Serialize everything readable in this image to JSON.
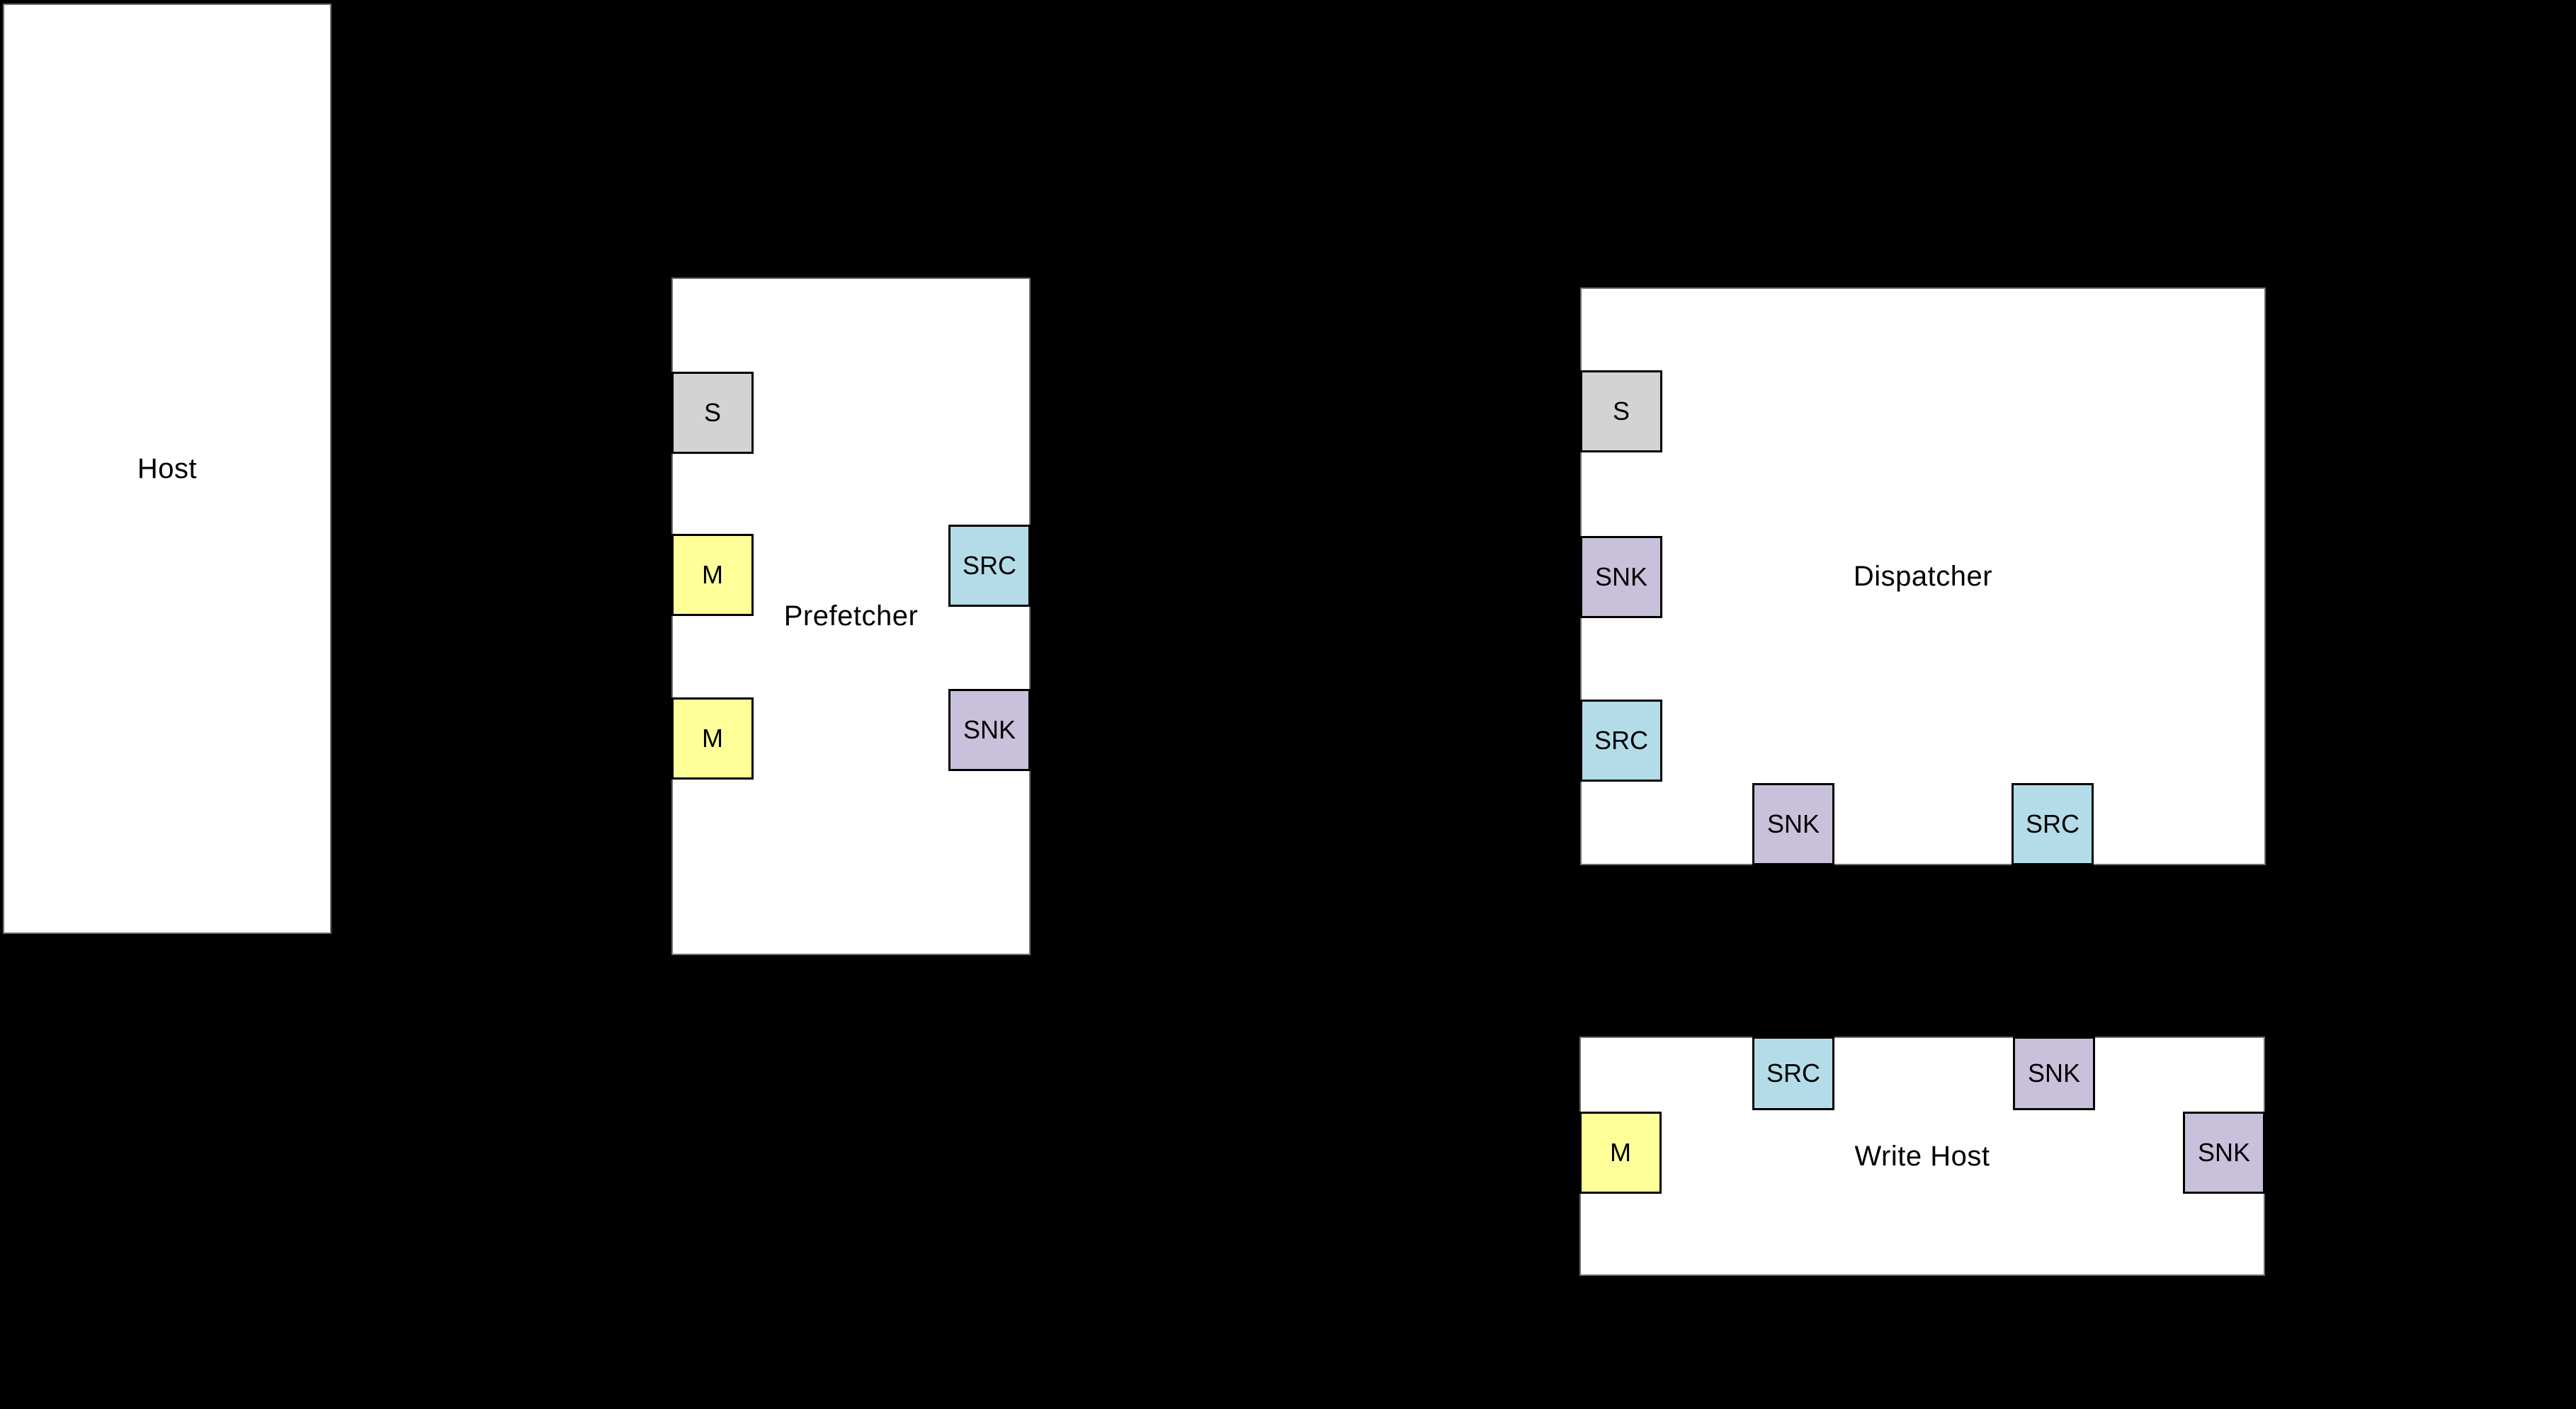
{
  "diagram": {
    "background": "#000000",
    "box_fill": "#ffffff",
    "port_colors": {
      "S": "#D3D3D3",
      "M": "#FFFF99",
      "SRC": "#B3DCE8",
      "SNK": "#C9C0DB"
    },
    "blocks": [
      {
        "id": "host",
        "label": "Host",
        "ports": []
      },
      {
        "id": "prefetcher",
        "label": "Prefetcher",
        "ports": [
          {
            "id": "pf-s",
            "type": "S",
            "label": "S"
          },
          {
            "id": "pf-m1",
            "type": "M",
            "label": "M"
          },
          {
            "id": "pf-m2",
            "type": "M",
            "label": "M"
          },
          {
            "id": "pf-src",
            "type": "SRC",
            "label": "SRC"
          },
          {
            "id": "pf-snk",
            "type": "SNK",
            "label": "SNK"
          }
        ]
      },
      {
        "id": "dispatcher",
        "label": "Dispatcher",
        "ports": [
          {
            "id": "dp-s",
            "type": "S",
            "label": "S"
          },
          {
            "id": "dp-snk-l",
            "type": "SNK",
            "label": "SNK"
          },
          {
            "id": "dp-src-l",
            "type": "SRC",
            "label": "SRC"
          },
          {
            "id": "dp-snk-b",
            "type": "SNK",
            "label": "SNK"
          },
          {
            "id": "dp-src-b",
            "type": "SRC",
            "label": "SRC"
          }
        ]
      },
      {
        "id": "write-host",
        "label": "Write Host",
        "ports": [
          {
            "id": "wh-src-t",
            "type": "SRC",
            "label": "SRC"
          },
          {
            "id": "wh-snk-t",
            "type": "SNK",
            "label": "SNK"
          },
          {
            "id": "wh-m",
            "type": "M",
            "label": "M"
          },
          {
            "id": "wh-snk-r",
            "type": "SNK",
            "label": "SNK"
          }
        ]
      }
    ]
  }
}
